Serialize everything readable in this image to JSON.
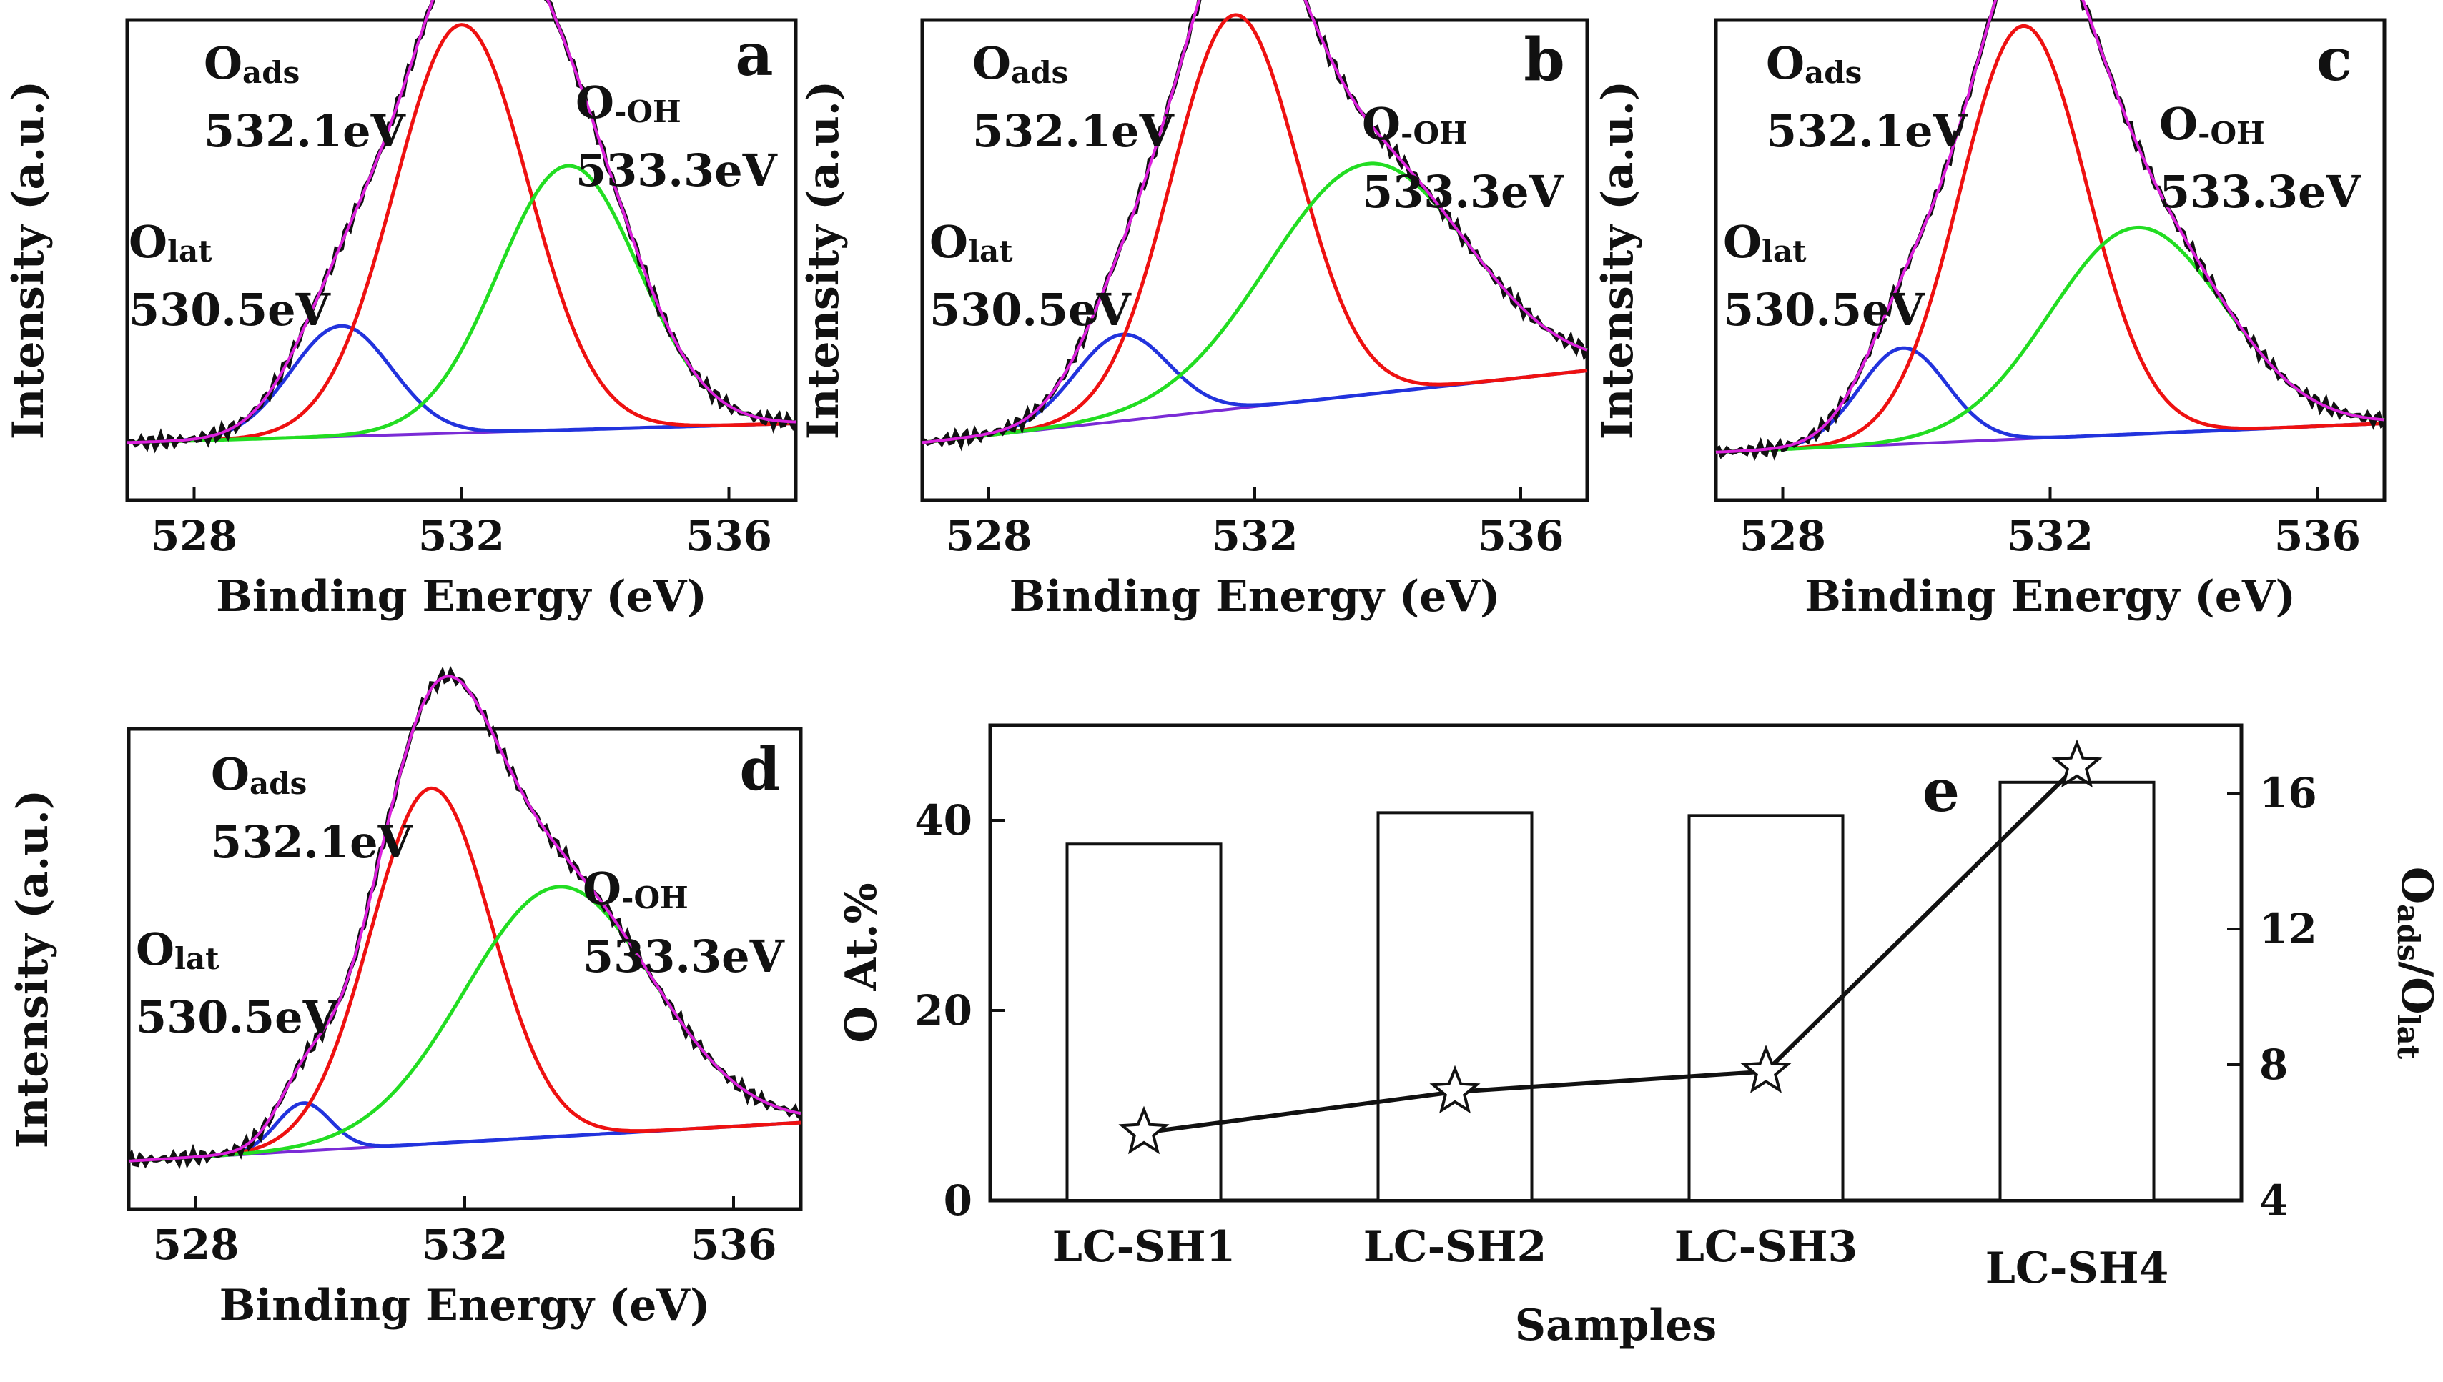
{
  "chart_data": [
    {
      "panel": "a",
      "type": "line",
      "panel_label": "a",
      "xlabel": "Binding Energy (eV)",
      "ylabel": "Intensity (a.u.)",
      "xlim": [
        527,
        537
      ],
      "ylim": [
        0,
        1
      ],
      "xticks": [
        528,
        532,
        536
      ],
      "xticklabels": [
        "528",
        "532",
        "536"
      ],
      "baseline": [
        0.12,
        0.16
      ],
      "peaks": [
        {
          "name": "Olat",
          "center": 530.2,
          "sigma": 0.75,
          "height": 0.23,
          "color": "#2233dd"
        },
        {
          "name": "Oads",
          "center": 532.0,
          "sigma": 1.0,
          "height": 0.85,
          "color": "#ee1111"
        },
        {
          "name": "O-OH",
          "center": 533.6,
          "sigma": 1.05,
          "height": 0.55,
          "color": "#22dd22"
        }
      ],
      "envelope_color": "#dd22dd",
      "raw_color": "#111111",
      "annotations": [
        {
          "main": "O",
          "sub": "ads",
          "value": "532.1eV"
        },
        {
          "main": "O",
          "sub": "lat",
          "value": "530.5eV"
        },
        {
          "main": "O",
          "sub": "-OH",
          "value": "533.3eV"
        }
      ]
    },
    {
      "panel": "b",
      "type": "line",
      "panel_label": "b",
      "xlabel": "Binding Energy (eV)",
      "ylabel": "Intensity (a.u.)",
      "xlim": [
        527,
        537
      ],
      "ylim": [
        0,
        1
      ],
      "xticks": [
        528,
        532,
        536
      ],
      "xticklabels": [
        "528",
        "532",
        "536"
      ],
      "baseline": [
        0.12,
        0.27
      ],
      "peaks": [
        {
          "name": "Olat",
          "center": 530.0,
          "sigma": 0.7,
          "height": 0.18,
          "color": "#2233dd"
        },
        {
          "name": "Oads",
          "center": 531.7,
          "sigma": 0.95,
          "height": 0.82,
          "color": "#ee1111"
        },
        {
          "name": "O-OH",
          "center": 533.7,
          "sigma": 1.5,
          "height": 0.48,
          "color": "#22dd22"
        }
      ],
      "envelope_color": "#dd22dd",
      "raw_color": "#111111",
      "annotations": [
        {
          "main": "O",
          "sub": "ads",
          "value": "532.1eV"
        },
        {
          "main": "O",
          "sub": "lat",
          "value": "530.5eV"
        },
        {
          "main": "O",
          "sub": "-OH",
          "value": "533.3eV"
        }
      ]
    },
    {
      "panel": "c",
      "type": "line",
      "panel_label": "c",
      "xlabel": "Binding Energy (eV)",
      "ylabel": "Intensity (a.u.)",
      "xlim": [
        527,
        537
      ],
      "ylim": [
        0,
        1
      ],
      "xticks": [
        528,
        532,
        536
      ],
      "xticklabels": [
        "528",
        "532",
        "536"
      ],
      "baseline": [
        0.1,
        0.16
      ],
      "peaks": [
        {
          "name": "Olat",
          "center": 529.8,
          "sigma": 0.65,
          "height": 0.2,
          "color": "#2233dd"
        },
        {
          "name": "Oads",
          "center": 531.6,
          "sigma": 0.95,
          "height": 0.86,
          "color": "#ee1111"
        },
        {
          "name": "O-OH",
          "center": 533.3,
          "sigma": 1.3,
          "height": 0.43,
          "color": "#22dd22"
        }
      ],
      "envelope_color": "#dd22dd",
      "raw_color": "#111111",
      "annotations": [
        {
          "main": "O",
          "sub": "ads",
          "value": "532.1eV"
        },
        {
          "main": "O",
          "sub": "lat",
          "value": "530.5eV"
        },
        {
          "main": "O",
          "sub": "-OH",
          "value": "533.3eV"
        }
      ]
    },
    {
      "panel": "d",
      "type": "line",
      "panel_label": "d",
      "xlabel": "Binding Energy (eV)",
      "ylabel": "Intensity (a.u.)",
      "xlim": [
        527,
        537
      ],
      "ylim": [
        0,
        1
      ],
      "xticks": [
        528,
        532,
        536
      ],
      "xticklabels": [
        "528",
        "532",
        "536"
      ],
      "baseline": [
        0.1,
        0.18
      ],
      "peaks": [
        {
          "name": "Olat",
          "center": 529.6,
          "sigma": 0.4,
          "height": 0.1,
          "color": "#2233dd"
        },
        {
          "name": "Oads",
          "center": 531.5,
          "sigma": 0.9,
          "height": 0.74,
          "color": "#ee1111"
        },
        {
          "name": "O-OH",
          "center": 533.4,
          "sigma": 1.4,
          "height": 0.52,
          "color": "#22dd22"
        }
      ],
      "envelope_color": "#dd22dd",
      "raw_color": "#111111",
      "annotations": [
        {
          "main": "O",
          "sub": "ads",
          "value": "532.1eV"
        },
        {
          "main": "O",
          "sub": "lat",
          "value": "530.5eV"
        },
        {
          "main": "O",
          "sub": "-OH",
          "value": "533.3eV"
        }
      ]
    },
    {
      "panel": "e",
      "type": "bar",
      "panel_label": "e",
      "categories": [
        "LC-SH1",
        "LC-SH2",
        "LC-SH3",
        "LC-SH4"
      ],
      "xlabel": "Samples",
      "series": [
        {
          "name": "O At.%",
          "axis": "left",
          "type": "bar",
          "values": [
            37.5,
            40.8,
            40.5,
            44.0
          ]
        },
        {
          "name": "Oads/Olat",
          "axis": "right",
          "type": "line",
          "marker": "star",
          "values": [
            6.0,
            7.2,
            7.8,
            16.8
          ]
        }
      ],
      "ylabel": "O At.%",
      "ylim": [
        0,
        50
      ],
      "yticks": [
        0,
        20,
        40
      ],
      "y2label_main": "O",
      "y2label_sub1": "ads",
      "y2label_mid": "/O",
      "y2label_sub2": "lat",
      "y2lim": [
        4,
        18
      ],
      "y2ticks": [
        4,
        8,
        12,
        16
      ]
    }
  ]
}
